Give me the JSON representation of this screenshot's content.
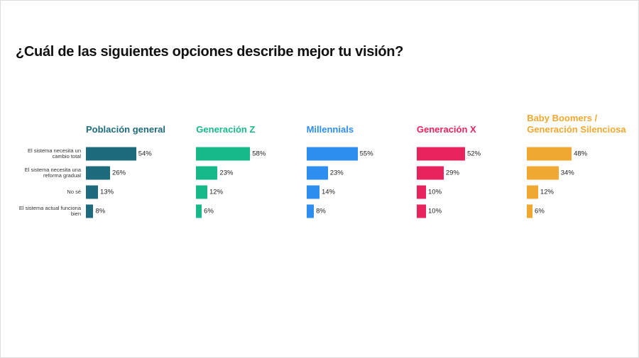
{
  "chart_data": {
    "type": "bar",
    "title": "¿Cuál de las siguientes opciones describe mejor tu visión?",
    "categories": [
      "El sistema necesita un cambio total",
      "El sistema necesita una reforma gradual",
      "No sé",
      "El sistema actual funciona bien"
    ],
    "series": [
      {
        "name": "Población general",
        "color": "#1d6b7c",
        "values": [
          54,
          26,
          13,
          8
        ],
        "value_labels": [
          "54%",
          "26%",
          "13%",
          "8%"
        ]
      },
      {
        "name": "Generación Z",
        "color": "#17b98a",
        "values": [
          58,
          23,
          12,
          6
        ],
        "value_labels": [
          "58%",
          "23%",
          "12%",
          "6%"
        ]
      },
      {
        "name": "Millennials",
        "color": "#2e8ef0",
        "values": [
          55,
          23,
          14,
          8
        ],
        "value_labels": [
          "55%",
          "23%",
          "14%",
          "8%"
        ]
      },
      {
        "name": "Generación X",
        "color": "#e8245e",
        "values": [
          52,
          29,
          10,
          10
        ],
        "value_labels": [
          "52%",
          "29%",
          "10%",
          "10%"
        ]
      },
      {
        "name": "Baby Boomers / Generación Silenciosa",
        "color": "#f0a832",
        "values": [
          48,
          34,
          12,
          6
        ],
        "value_labels": [
          "48%",
          "34%",
          "12%",
          "6%"
        ]
      }
    ]
  }
}
